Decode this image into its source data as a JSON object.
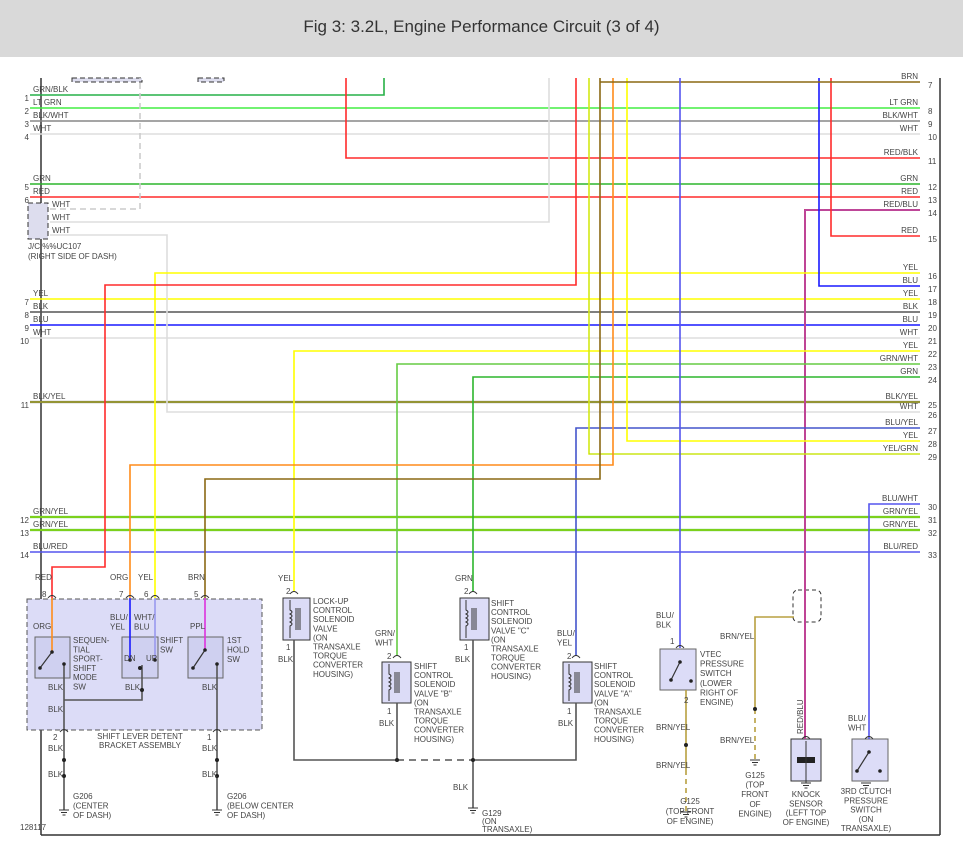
{
  "title": "Fig 3: 3.2L, Engine Performance Circuit (3 of 4)",
  "diagram_id": "128117",
  "wire_colors": {
    "GRN": "#2db52d",
    "LTGRN": "#44ee44",
    "BLK": "#555555",
    "WHT": "#dddddd",
    "RED": "#ff2b2b",
    "YEL": "#ffff00",
    "BLU": "#1a1aff",
    "ORG": "#ff8c1a",
    "BRN": "#8b6914",
    "PPL": "#dd33dd",
    "REDBLU": "#d43c6e",
    "VIOLET": "#5555ee",
    "BRNYEL": "#b8a040",
    "PURPLE": "#9955dd"
  },
  "left_pins": [
    {
      "num": "1",
      "label": "GRN/BLK"
    },
    {
      "num": "2",
      "label": "LT GRN"
    },
    {
      "num": "3",
      "label": "BLK/WHT"
    },
    {
      "num": "4",
      "label": "WHT"
    },
    {
      "num": "5",
      "label": "GRN"
    },
    {
      "num": "6",
      "label": "RED"
    },
    {
      "num": "7",
      "label": "YEL"
    },
    {
      "num": "8",
      "label": "BLK"
    },
    {
      "num": "9",
      "label": "BLU"
    },
    {
      "num": "10",
      "label": "WHT"
    },
    {
      "num": "11",
      "label": "BLK/YEL"
    },
    {
      "num": "12",
      "label": "GRN/YEL"
    },
    {
      "num": "13",
      "label": "GRN/YEL"
    },
    {
      "num": "14",
      "label": "BLU/RED"
    }
  ],
  "right_pins": [
    {
      "num": "7",
      "label": "BRN"
    },
    {
      "num": "8",
      "label": "LT GRN"
    },
    {
      "num": "9",
      "label": "BLK/WHT"
    },
    {
      "num": "10",
      "label": "WHT"
    },
    {
      "num": "11",
      "label": "RED/BLK"
    },
    {
      "num": "12",
      "label": "GRN"
    },
    {
      "num": "13",
      "label": "RED"
    },
    {
      "num": "14",
      "label": "RED/BLU"
    },
    {
      "num": "15",
      "label": "RED"
    },
    {
      "num": "16",
      "label": "YEL"
    },
    {
      "num": "17",
      "label": "BLU"
    },
    {
      "num": "18",
      "label": "YEL"
    },
    {
      "num": "19",
      "label": "BLK"
    },
    {
      "num": "20",
      "label": "BLU"
    },
    {
      "num": "21",
      "label": "WHT"
    },
    {
      "num": "22",
      "label": "YEL"
    },
    {
      "num": "23",
      "label": "GRN/WHT"
    },
    {
      "num": "24",
      "label": "GRN"
    },
    {
      "num": "25",
      "label": "BLK/YEL"
    },
    {
      "num": "26",
      "label": "WHT"
    },
    {
      "num": "27",
      "label": "BLU/YEL"
    },
    {
      "num": "28",
      "label": "YEL"
    },
    {
      "num": "29",
      "label": "YEL/GRN"
    },
    {
      "num": "30",
      "label": "BLU/WHT"
    },
    {
      "num": "31",
      "label": "GRN/YEL"
    },
    {
      "num": "32",
      "label": "GRN/YEL"
    },
    {
      "num": "33",
      "label": "BLU/RED"
    }
  ],
  "jc": {
    "wires": [
      "WHT",
      "WHT",
      "WHT"
    ],
    "name": [
      "J/C %%UC107",
      "(RIGHT SIDE OF DASH)"
    ]
  },
  "bracket": {
    "top_wires": [
      "RED",
      "ORG",
      "YEL",
      "BRN"
    ],
    "top_pins": [
      "8",
      "7",
      "6",
      "5"
    ],
    "inner_wires": {
      "org": "ORG",
      "bluyel": [
        "BLU/",
        "YEL"
      ],
      "whtblu": [
        "WHT/",
        "BLU"
      ],
      "ppl": "PPL"
    },
    "sport_switch": [
      "SEQUEN-",
      "TIAL",
      "SPORT-",
      "SHIFT",
      "MODE",
      "SW"
    ],
    "shift_switch": [
      "SHIFT",
      "SW"
    ],
    "shift_dn": "DN",
    "shift_up": "UP",
    "hold_switch": [
      "1ST",
      "HOLD",
      "SW"
    ],
    "blk": "BLK",
    "name": [
      "SHIFT LEVER DETENT",
      "BRACKET ASSEMBLY"
    ],
    "bottom_pins": [
      "2",
      "1"
    ],
    "ground_left": [
      "G206",
      "(CENTER",
      "OF DASH)"
    ],
    "ground_right": [
      "G206",
      "(BELOW CENTER",
      "OF DASH)"
    ]
  },
  "lockup": {
    "wire": "YEL",
    "pins": [
      "2",
      "1"
    ],
    "ground_wire": "BLK",
    "name": [
      "LOCK-UP",
      "CONTROL",
      "SOLENOID",
      "VALVE",
      "(ON",
      "TRANSAXLE",
      "TORQUE",
      "CONVERTER",
      "HOUSING)"
    ]
  },
  "valve_b": {
    "wire": [
      "GRN/",
      "WHT"
    ],
    "pins": [
      "2",
      "1"
    ],
    "ground_wire": "BLK",
    "name": [
      "SHIFT",
      "CONTROL",
      "SOLENOID",
      "VALVE \"B\"",
      "(ON",
      "TRANSAXLE",
      "TORQUE",
      "CONVERTER",
      "HOUSING)"
    ]
  },
  "valve_c": {
    "wire": "GRN",
    "pins": [
      "2",
      "1"
    ],
    "ground_wire": "BLK",
    "name": [
      "SHIFT",
      "CONTROL",
      "SOLENOID",
      "VALVE \"C\"",
      "(ON",
      "TRANSAXLE",
      "TORQUE",
      "CONVERTER",
      "HOUSING)"
    ]
  },
  "valve_a": {
    "wire": [
      "BLU/",
      "YEL"
    ],
    "pins": [
      "2",
      "1"
    ],
    "ground_wire": "BLK",
    "name": [
      "SHIFT",
      "CONTROL",
      "SOLENOID",
      "VALVE \"A\"",
      "(ON",
      "TRANSAXLE",
      "TORQUE",
      "CONVERTER",
      "HOUSING)"
    ]
  },
  "g129": {
    "wire": "BLK",
    "name": [
      "G129",
      "(ON",
      "TRANSAXLE)"
    ]
  },
  "vtec": {
    "wire": [
      "BLU/",
      "BLK"
    ],
    "pins": [
      "1",
      "2"
    ],
    "name": [
      "VTEC",
      "PRESSURE",
      "SWITCH",
      "(LOWER",
      "RIGHT OF",
      "ENGINE)"
    ],
    "ground_wires": [
      "BRN/YEL",
      "BRN/YEL"
    ],
    "ground": [
      "G125",
      "(TOP FRONT",
      "OF ENGINE)"
    ]
  },
  "knock_ground": {
    "wires": [
      "BRN/YEL",
      "BRN/YEL"
    ],
    "name": [
      "G125",
      "(TOP",
      "FRONT",
      "OF",
      "ENGINE)"
    ]
  },
  "knock": {
    "wire": "RED/BLU",
    "name": [
      "KNOCK",
      "SENSOR",
      "(LEFT TOP",
      "OF ENGINE)"
    ]
  },
  "clutch": {
    "wire": [
      "BLU/",
      "WHT"
    ],
    "name": [
      "3RD CLUTCH",
      "PRESSURE",
      "SWITCH",
      "(ON",
      "TRANSAXLE)"
    ]
  }
}
